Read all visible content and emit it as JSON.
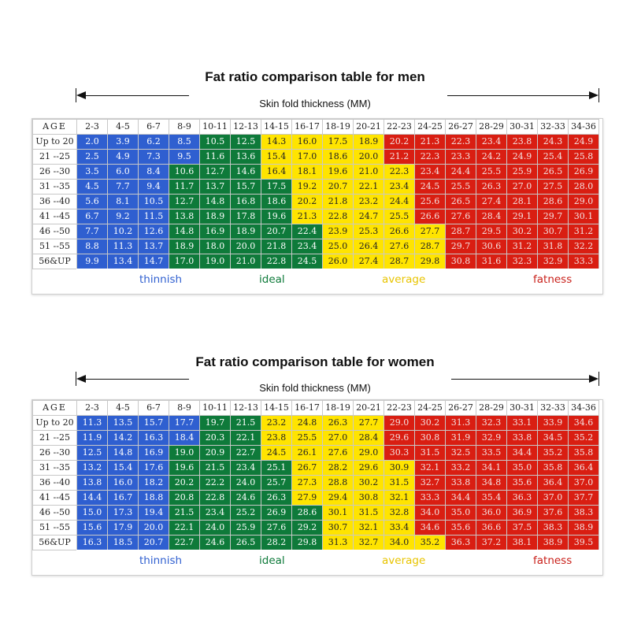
{
  "colors": {
    "thinnish": "#2f5fd0",
    "ideal": "#0e7a3a",
    "average": "#ffe400",
    "fatness": "#d91e12"
  },
  "men": {
    "title": "Fat ratio comparison table for men",
    "subtitle": "Skin fold thickness (MM)",
    "age_header": "AGE",
    "columns": [
      "2-3",
      "4-5",
      "6-7",
      "8-9",
      "10-11",
      "12-13",
      "14-15",
      "16-17",
      "18-19",
      "20-21",
      "22-23",
      "24-25",
      "26-27",
      "28-29",
      "30-31",
      "32-33",
      "34-36"
    ],
    "rows": [
      {
        "age": "Up to 20",
        "values": [
          "2.0",
          "3.9",
          "6.2",
          "8.5",
          "10.5",
          "12.5",
          "14.3",
          "16.0",
          "17.5",
          "18.9",
          "20.2",
          "21.3",
          "22.3",
          "23.4",
          "23.8",
          "24.3",
          "24.9"
        ]
      },
      {
        "age": "21 --25",
        "values": [
          "2.5",
          "4.9",
          "7.3",
          "9.5",
          "11.6",
          "13.6",
          "15.4",
          "17.0",
          "18.6",
          "20.0",
          "21.2",
          "22.3",
          "23.3",
          "24.2",
          "24.9",
          "25.4",
          "25.8"
        ]
      },
      {
        "age": "26 --30",
        "values": [
          "3.5",
          "6.0",
          "8.4",
          "10.6",
          "12.7",
          "14.6",
          "16.4",
          "18.1",
          "19.6",
          "21.0",
          "22.3",
          "23.4",
          "24.4",
          "25.5",
          "25.9",
          "26.5",
          "26.9"
        ]
      },
      {
        "age": "31 --35",
        "values": [
          "4.5",
          "7.7",
          "9.4",
          "11.7",
          "13.7",
          "15.7",
          "17.5",
          "19.2",
          "20.7",
          "22.1",
          "23.4",
          "24.5",
          "25.5",
          "26.3",
          "27.0",
          "27.5",
          "28.0"
        ]
      },
      {
        "age": "36 --40",
        "values": [
          "5.6",
          "8.1",
          "10.5",
          "12.7",
          "14.8",
          "16.8",
          "18.6",
          "20.2",
          "21.8",
          "23.2",
          "24.4",
          "25.6",
          "26.5",
          "27.4",
          "28.1",
          "28.6",
          "29.0"
        ]
      },
      {
        "age": "41 --45",
        "values": [
          "6.7",
          "9.2",
          "11.5",
          "13.8",
          "18.9",
          "17.8",
          "19.6",
          "21.3",
          "22.8",
          "24.7",
          "25.5",
          "26.6",
          "27.6",
          "28.4",
          "29.1",
          "29.7",
          "30.1"
        ]
      },
      {
        "age": "46 --50",
        "values": [
          "7.7",
          "10.2",
          "12.6",
          "14.8",
          "16.9",
          "18.9",
          "20.7",
          "22.4",
          "23.9",
          "25.3",
          "26.6",
          "27.7",
          "28.7",
          "29.5",
          "30.2",
          "30.7",
          "31.2"
        ]
      },
      {
        "age": "51 --55",
        "values": [
          "8.8",
          "11.3",
          "13.7",
          "18.9",
          "18.0",
          "20.0",
          "21.8",
          "23.4",
          "25.0",
          "26.4",
          "27.6",
          "28.7",
          "29.7",
          "30.6",
          "31.2",
          "31.8",
          "32.2"
        ]
      },
      {
        "age": "56&UP",
        "values": [
          "9.9",
          "13.4",
          "14.7",
          "17.0",
          "19.0",
          "21.0",
          "22.8",
          "24.5",
          "26.0",
          "27.4",
          "28.7",
          "29.8",
          "30.8",
          "31.6",
          "32.3",
          "32.9",
          "33.3"
        ]
      }
    ],
    "color_splits": [
      [
        4,
        6,
        10
      ],
      [
        4,
        6,
        10
      ],
      [
        3,
        6,
        11
      ],
      [
        3,
        7,
        11
      ],
      [
        3,
        7,
        11
      ],
      [
        3,
        7,
        11
      ],
      [
        3,
        8,
        12
      ],
      [
        3,
        8,
        12
      ],
      [
        3,
        8,
        12
      ]
    ],
    "legend": {
      "thinnish": "thinnish",
      "ideal": "ideal",
      "average": "average",
      "fatness": "fatness"
    }
  },
  "women": {
    "title": "Fat ratio comparison table for women",
    "subtitle": "Skin fold thickness (MM)",
    "age_header": "AGE",
    "columns": [
      "2-3",
      "4-5",
      "6-7",
      "8-9",
      "10-11",
      "12-13",
      "14-15",
      "16-17",
      "18-19",
      "20-21",
      "22-23",
      "24-25",
      "26-27",
      "28-29",
      "30-31",
      "32-33",
      "34-36"
    ],
    "rows": [
      {
        "age": "Up to 20",
        "values": [
          "11.3",
          "13.5",
          "15.7",
          "17.7",
          "19.7",
          "21.5",
          "23.2",
          "24.8",
          "26.3",
          "27.7",
          "29.0",
          "30.2",
          "31.3",
          "32.3",
          "33.1",
          "33.9",
          "34.6"
        ]
      },
      {
        "age": "21 --25",
        "values": [
          "11.9",
          "14.2",
          "16.3",
          "18.4",
          "20.3",
          "22.1",
          "23.8",
          "25.5",
          "27.0",
          "28.4",
          "29.6",
          "30.8",
          "31.9",
          "32.9",
          "33.8",
          "34.5",
          "35.2"
        ]
      },
      {
        "age": "26 --30",
        "values": [
          "12.5",
          "14.8",
          "16.9",
          "19.0",
          "20.9",
          "22.7",
          "24.5",
          "26.1",
          "27.6",
          "29.0",
          "30.3",
          "31.5",
          "32.5",
          "33.5",
          "34.4",
          "35.2",
          "35.8"
        ]
      },
      {
        "age": "31 --35",
        "values": [
          "13.2",
          "15.4",
          "17.6",
          "19.6",
          "21.5",
          "23.4",
          "25.1",
          "26.7",
          "28.2",
          "29.6",
          "30.9",
          "32.1",
          "33.2",
          "34.1",
          "35.0",
          "35.8",
          "36.4"
        ]
      },
      {
        "age": "36 --40",
        "values": [
          "13.8",
          "16.0",
          "18.2",
          "20.2",
          "22.2",
          "24.0",
          "25.7",
          "27.3",
          "28.8",
          "30.2",
          "31.5",
          "32.7",
          "33.8",
          "34.8",
          "35.6",
          "36.4",
          "37.0"
        ]
      },
      {
        "age": "41 --45",
        "values": [
          "14.4",
          "16.7",
          "18.8",
          "20.8",
          "22.8",
          "24.6",
          "26.3",
          "27.9",
          "29.4",
          "30.8",
          "32.1",
          "33.3",
          "34.4",
          "35.4",
          "36.3",
          "37.0",
          "37.7"
        ]
      },
      {
        "age": "46 --50",
        "values": [
          "15.0",
          "17.3",
          "19.4",
          "21.5",
          "23.4",
          "25.2",
          "26.9",
          "28.6",
          "30.1",
          "31.5",
          "32.8",
          "34.0",
          "35.0",
          "36.0",
          "36.9",
          "37.6",
          "38.3"
        ]
      },
      {
        "age": "51 --55",
        "values": [
          "15.6",
          "17.9",
          "20.0",
          "22.1",
          "24.0",
          "25.9",
          "27.6",
          "29.2",
          "30.7",
          "32.1",
          "33.4",
          "34.6",
          "35.6",
          "36.6",
          "37.5",
          "38.3",
          "38.9"
        ]
      },
      {
        "age": "56&UP",
        "values": [
          "16.3",
          "18.5",
          "20.7",
          "22.7",
          "24.6",
          "26.5",
          "28.2",
          "29.8",
          "31.3",
          "32.7",
          "34.0",
          "35.2",
          "36.3",
          "37.2",
          "38.1",
          "38.9",
          "39.5"
        ]
      }
    ],
    "color_splits": [
      [
        4,
        6,
        10
      ],
      [
        4,
        6,
        10
      ],
      [
        3,
        6,
        10
      ],
      [
        3,
        7,
        11
      ],
      [
        3,
        7,
        11
      ],
      [
        3,
        7,
        11
      ],
      [
        3,
        8,
        11
      ],
      [
        3,
        8,
        11
      ],
      [
        3,
        8,
        12
      ]
    ],
    "legend": {
      "thinnish": "thinnish",
      "ideal": "ideal",
      "average": "average",
      "fatness": "fatness"
    }
  }
}
